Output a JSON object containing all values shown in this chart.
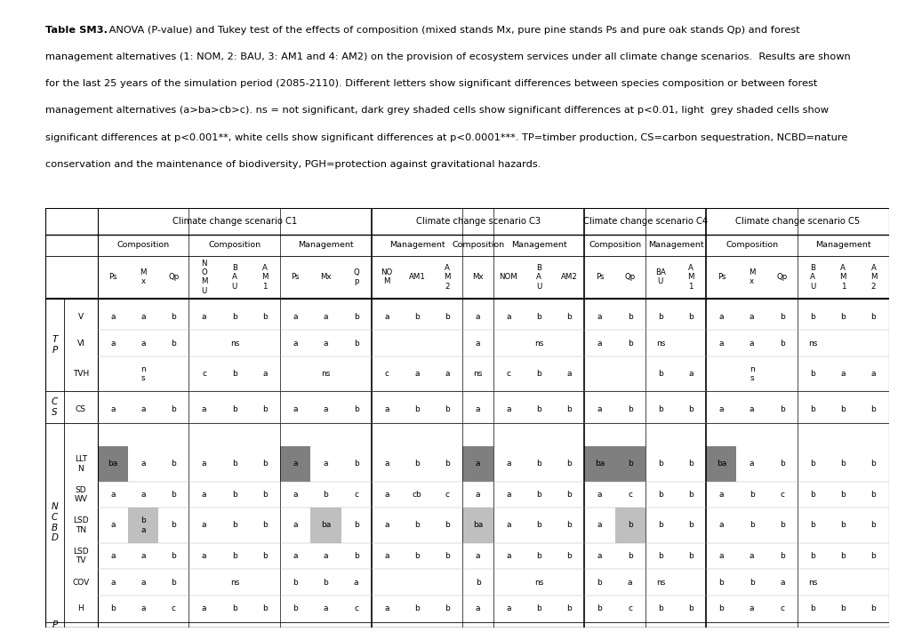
{
  "fig_bg": "#ffffff",
  "scenario_spans": [
    [
      "Climate change scenario C1",
      0,
      8
    ],
    [
      "Climate change scenario C3",
      9,
      15
    ],
    [
      "Climate change scenario C4",
      16,
      19
    ],
    [
      "Climate change scenario C5",
      20,
      25
    ]
  ],
  "h2_spans": [
    [
      "Composition",
      0,
      2
    ],
    [
      "Composition",
      3,
      5
    ],
    [
      "Management",
      6,
      8
    ],
    [
      "Management",
      9,
      11
    ],
    [
      "Composition",
      12,
      12
    ],
    [
      "Management",
      13,
      15
    ],
    [
      "Composition",
      16,
      17
    ],
    [
      "Management",
      18,
      19
    ],
    [
      "Composition",
      20,
      22
    ],
    [
      "Management",
      23,
      25
    ]
  ],
  "col_hdrs": [
    "Ps",
    "M\nx",
    "Qp",
    "N\nO\nM\nU",
    "B\nA\nU",
    "A\nM\n1",
    "Ps",
    "Mx",
    "Q\np",
    "NO\nM",
    "AM1",
    "A\nM\n2",
    "Mx",
    "NOM",
    "B\nA\nU",
    "AM2",
    "Ps",
    "Qp",
    "BA\nU",
    "A\nM\n1",
    "Ps",
    "M\nx",
    "Qp",
    "B\nA\nU",
    "A\nM\n1",
    "A\nM\n2"
  ],
  "color_dark": "#7f7f7f",
  "color_light": "#bfbfbf",
  "color_white": "#ffffff",
  "table_data": {
    "V": [
      [
        "a",
        "a",
        "b",
        "a",
        "b",
        "b",
        "a",
        "a",
        "b",
        "a",
        "b",
        "b",
        "a",
        "a",
        "b",
        "b",
        "a",
        "b",
        "b",
        "b",
        "a",
        "a",
        "b",
        "b",
        "b",
        "b"
      ],
      [
        0,
        0,
        0,
        0,
        0,
        0,
        0,
        0,
        0,
        0,
        0,
        0,
        0,
        0,
        0,
        0,
        0,
        0,
        0,
        0,
        0,
        0,
        0,
        0,
        0,
        0
      ]
    ],
    "VI": [
      [
        "a",
        "a",
        "b",
        "",
        "ns",
        "",
        "a",
        "a",
        "b",
        "",
        "",
        "",
        "a",
        "",
        "ns",
        "",
        "a",
        "b",
        "ns",
        "",
        "a",
        "a",
        "b",
        "ns",
        "",
        ""
      ],
      [
        0,
        0,
        0,
        0,
        0,
        0,
        0,
        0,
        0,
        0,
        0,
        0,
        0,
        0,
        0,
        0,
        0,
        0,
        0,
        0,
        0,
        0,
        0,
        0,
        0,
        0
      ]
    ],
    "TVH": [
      [
        "",
        "n\ns",
        "",
        "c",
        "b",
        "a",
        "",
        "ns",
        "",
        "c",
        "a",
        "a",
        "ns",
        "c",
        "b",
        "a",
        "",
        "",
        "b",
        "a",
        "",
        "n\ns",
        "",
        "b",
        "a",
        "a"
      ],
      [
        0,
        0,
        0,
        0,
        0,
        0,
        0,
        0,
        0,
        0,
        0,
        0,
        0,
        0,
        0,
        0,
        0,
        0,
        0,
        0,
        0,
        0,
        0,
        0,
        0,
        0
      ]
    ],
    "CS": [
      [
        "a",
        "a",
        "b",
        "a",
        "b",
        "b",
        "a",
        "a",
        "b",
        "a",
        "b",
        "b",
        "a",
        "a",
        "b",
        "b",
        "a",
        "b",
        "b",
        "b",
        "a",
        "a",
        "b",
        "b",
        "b",
        "b"
      ],
      [
        0,
        0,
        0,
        0,
        0,
        0,
        0,
        0,
        0,
        0,
        0,
        0,
        0,
        0,
        0,
        0,
        0,
        0,
        0,
        0,
        0,
        0,
        0,
        0,
        0,
        0
      ]
    ],
    "LLTN": [
      [
        "ba",
        "a",
        "b",
        "a",
        "b",
        "b",
        "a",
        "a",
        "b",
        "a",
        "b",
        "b",
        "a",
        "a",
        "b",
        "b",
        "ba",
        "b",
        "b",
        "b",
        "ba",
        "a",
        "b",
        "b",
        "b",
        "b"
      ],
      [
        1,
        0,
        0,
        0,
        0,
        0,
        1,
        0,
        0,
        0,
        0,
        0,
        1,
        0,
        0,
        0,
        1,
        1,
        0,
        0,
        1,
        0,
        0,
        0,
        0,
        0
      ]
    ],
    "SDWV": [
      [
        "a",
        "a",
        "b",
        "a",
        "b",
        "b",
        "a",
        "b",
        "c",
        "a",
        "cb",
        "c",
        "a",
        "a",
        "b",
        "b",
        "a",
        "c",
        "b",
        "b",
        "a",
        "b",
        "c",
        "b",
        "b",
        "b"
      ],
      [
        0,
        0,
        0,
        0,
        0,
        0,
        0,
        0,
        0,
        0,
        0,
        0,
        0,
        0,
        0,
        0,
        0,
        0,
        0,
        0,
        0,
        0,
        0,
        0,
        0,
        0
      ]
    ],
    "LSDTN": [
      [
        "a",
        "b\na",
        "b",
        "a",
        "b",
        "b",
        "a",
        "ba",
        "b",
        "a",
        "b",
        "b",
        "ba",
        "a",
        "b",
        "b",
        "a",
        "b",
        "b",
        "b",
        "a",
        "b",
        "b",
        "b",
        "b",
        "b"
      ],
      [
        0,
        2,
        0,
        0,
        0,
        0,
        0,
        2,
        0,
        0,
        0,
        0,
        2,
        0,
        0,
        0,
        0,
        2,
        0,
        0,
        0,
        0,
        0,
        0,
        0,
        0
      ]
    ],
    "LSDTV": [
      [
        "a",
        "a",
        "b",
        "a",
        "b",
        "b",
        "a",
        "a",
        "b",
        "a",
        "b",
        "b",
        "a",
        "a",
        "b",
        "b",
        "a",
        "b",
        "b",
        "b",
        "a",
        "a",
        "b",
        "b",
        "b",
        "b"
      ],
      [
        0,
        0,
        0,
        0,
        0,
        0,
        0,
        0,
        0,
        0,
        0,
        0,
        0,
        0,
        0,
        0,
        0,
        0,
        0,
        0,
        0,
        0,
        0,
        0,
        0,
        0
      ]
    ],
    "COV": [
      [
        "a",
        "a",
        "b",
        "",
        "ns",
        "",
        "b",
        "b",
        "a",
        "",
        "",
        "",
        "b",
        "",
        "ns",
        "",
        "b",
        "a",
        "ns",
        "",
        "b",
        "b",
        "a",
        "ns",
        "",
        ""
      ],
      [
        0,
        0,
        0,
        0,
        0,
        0,
        0,
        0,
        0,
        0,
        0,
        0,
        0,
        0,
        0,
        0,
        0,
        0,
        0,
        0,
        0,
        0,
        0,
        0,
        0,
        0
      ]
    ],
    "H": [
      [
        "b",
        "a",
        "c",
        "a",
        "b",
        "b",
        "b",
        "a",
        "c",
        "a",
        "b",
        "b",
        "a",
        "a",
        "b",
        "b",
        "b",
        "c",
        "b",
        "b",
        "b",
        "a",
        "c",
        "b",
        "b",
        "b"
      ],
      [
        0,
        0,
        0,
        0,
        0,
        0,
        0,
        0,
        0,
        0,
        0,
        0,
        0,
        0,
        0,
        0,
        0,
        0,
        0,
        0,
        0,
        0,
        0,
        0,
        0,
        0
      ]
    ]
  },
  "caption_lines": [
    [
      "Table SM3.",
      " ANOVA (P-value) and Tukey test of the effects of composition (mixed stands Mx, pure pine stands Ps and pure oak stands Qp) and forest"
    ],
    [
      "",
      "management alternatives (1: NOM, 2: BAU, 3: AM1 and 4: AM2) on the provision of ecosystem services under all climate change scenarios.  Results are shown"
    ],
    [
      "",
      "for the last 25 years of the simulation period (2085-2110). Different letters show significant differences between species composition or between forest"
    ],
    [
      "",
      "management alternatives (a>ba>cb>c). ns = not significant, dark grey shaded cells show significant differences at p<0.01, light  grey shaded cells show"
    ],
    [
      "",
      "significant differences at p<0.001**, white cells show significant differences at p<0.0001***. TP=timber production, CS=carbon sequestration, NCBD=nature"
    ],
    [
      "",
      "conservation and the maintenance of biodiversity, PGH=protection against gravitational hazards."
    ]
  ]
}
